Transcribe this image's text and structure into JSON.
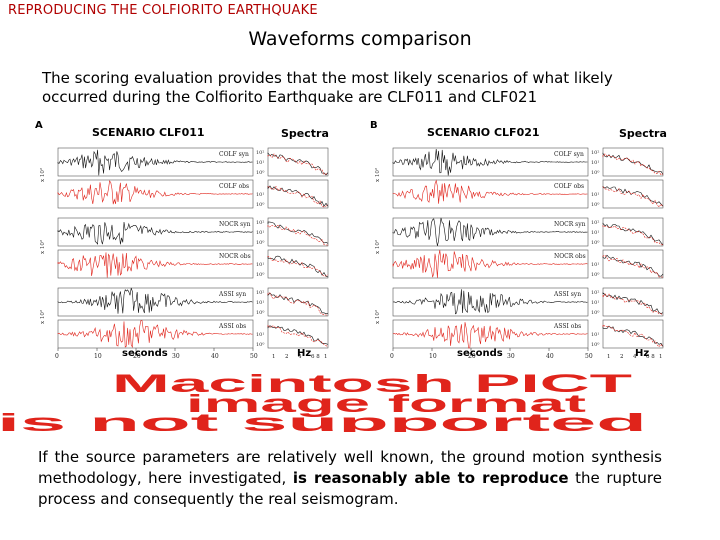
{
  "header": {
    "text": "REPRODUCING THE COLFIORITO EARTHQUAKE"
  },
  "title": "Waveforms comparison",
  "intro": "The scoring evaluation provides that the most likely scenarios of what likely occurred during the Colfiorito Earthquake are CLF011 and CLF021",
  "figure": {
    "panels": [
      {
        "letter": "A",
        "scenario": "SCENARIO CLF011",
        "spectra": "Spectra",
        "xlabel_time": "seconds",
        "xlabel_freq": "Hz",
        "traces": [
          "COLF syn",
          "COLF obs",
          "NOCR syn",
          "NOCR obs",
          "ASSI syn",
          "ASSI obs"
        ]
      },
      {
        "letter": "B",
        "scenario": "SCENARIO CLF021",
        "spectra": "Spectra",
        "xlabel_time": "seconds",
        "xlabel_freq": "Hz",
        "traces": [
          "COLF syn",
          "COLF obs",
          "NOCR syn",
          "NOCR obs",
          "ASSI syn",
          "ASSI obs"
        ]
      }
    ],
    "time_ticks": [
      "0",
      "10",
      "20",
      "30",
      "40",
      "50"
    ],
    "freq_ticks": [
      "1",
      "2",
      "4",
      "6 8",
      "1"
    ],
    "spec_ticks": [
      "10²",
      "10¹",
      "10⁰"
    ],
    "colors": {
      "synthetic": "#111111",
      "observed": "#e0241b"
    }
  },
  "unsupported_banner": {
    "lines": [
      "Macintosh PICT",
      "image format",
      "is not supported"
    ],
    "color": "#e0241b"
  },
  "body": {
    "part1": "If the source parameters are relatively well known, the ground motion synthesis methodology, here investigated, ",
    "bold1": "is reasonably able to reproduce",
    "part2": " the rupture process and consequently the real seismogram."
  }
}
